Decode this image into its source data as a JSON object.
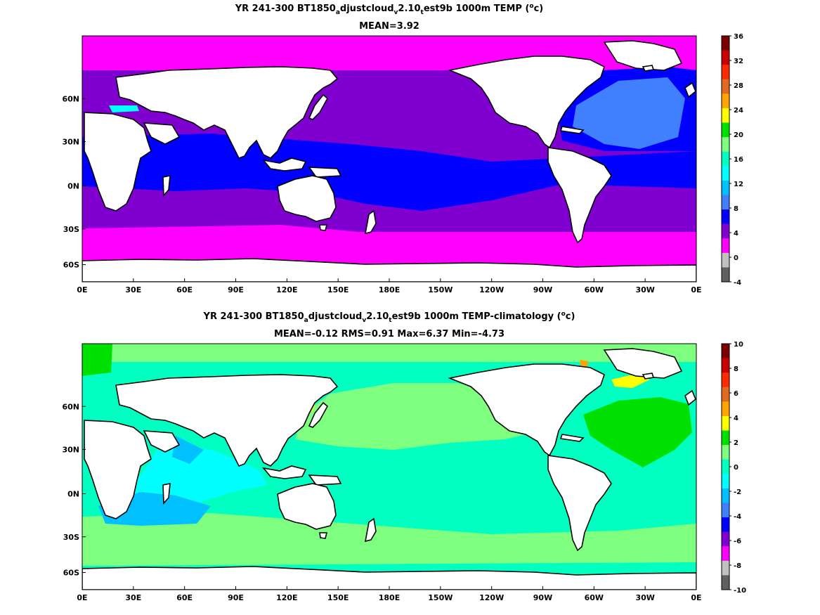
{
  "panels": [
    {
      "title": {
        "pre": "YR 241-300 BT1850",
        "s1": "a",
        "mid1": "djustcloud",
        "s2": "v",
        "mid2": "2.10",
        "s3": "t",
        "mid3": "est9b 1000m TEMP (",
        "sup": "o",
        "post": "c)"
      },
      "subtitle": "MEAN=3.92",
      "colorbar_ticks": [
        "36",
        "32",
        "28",
        "24",
        "20",
        "16",
        "12",
        "8",
        "4",
        "0",
        "-4"
      ],
      "colorbar_colors": [
        "#7a0000",
        "#c80000",
        "#ff2a00",
        "#e06a20",
        "#ffa500",
        "#ffff00",
        "#00e000",
        "#7fff7f",
        "#00ffc0",
        "#00ffff",
        "#00c0ff",
        "#4080ff",
        "#0000ff",
        "#8000d0",
        "#ff00ff",
        "#c0c0c0",
        "#606060"
      ]
    },
    {
      "title": {
        "pre": "YR 241-300 BT1850",
        "s1": "a",
        "mid1": "djustcloud",
        "s2": "v",
        "mid2": "2.10",
        "s3": "t",
        "mid3": "est9b 1000m TEMP-climatology (",
        "sup": "o",
        "post": "c)"
      },
      "subtitle": "MEAN=-0.12   RMS=0.91   Max=6.37   Min=-4.73",
      "colorbar_ticks": [
        "10",
        "8",
        "6",
        "4",
        "2",
        "0",
        "-2",
        "-4",
        "-6",
        "-8",
        "-10"
      ],
      "colorbar_colors": [
        "#7a0000",
        "#c80000",
        "#ff2a00",
        "#e06a20",
        "#ffa500",
        "#ffff00",
        "#00e000",
        "#7fff7f",
        "#00ffc0",
        "#00ffff",
        "#00c0ff",
        "#4080ff",
        "#0000ff",
        "#8000d0",
        "#ff00ff",
        "#c0c0c0",
        "#606060"
      ]
    }
  ],
  "x_ticks": [
    "0E",
    "30E",
    "60E",
    "90E",
    "120E",
    "150E",
    "180E",
    "150W",
    "120W",
    "90W",
    "60W",
    "30W",
    "0E"
  ],
  "y_ticks": [
    "60N",
    "30N",
    "0N",
    "30S",
    "60S"
  ],
  "colors": {
    "land": "#ffffff",
    "coast": "#000000",
    "top": {
      "polar": "#ff00ff",
      "mid": "#8000d0",
      "warm": "#0000ff",
      "atl": "#4080ff",
      "med": "#00ffff"
    },
    "bottom": {
      "base": "#00ffc0",
      "lime": "#7fff7f",
      "green": "#00e000",
      "cyan": "#00ffff",
      "blue": "#00c0ff",
      "yellow": "#ffff00",
      "orange": "#ffa500"
    }
  }
}
